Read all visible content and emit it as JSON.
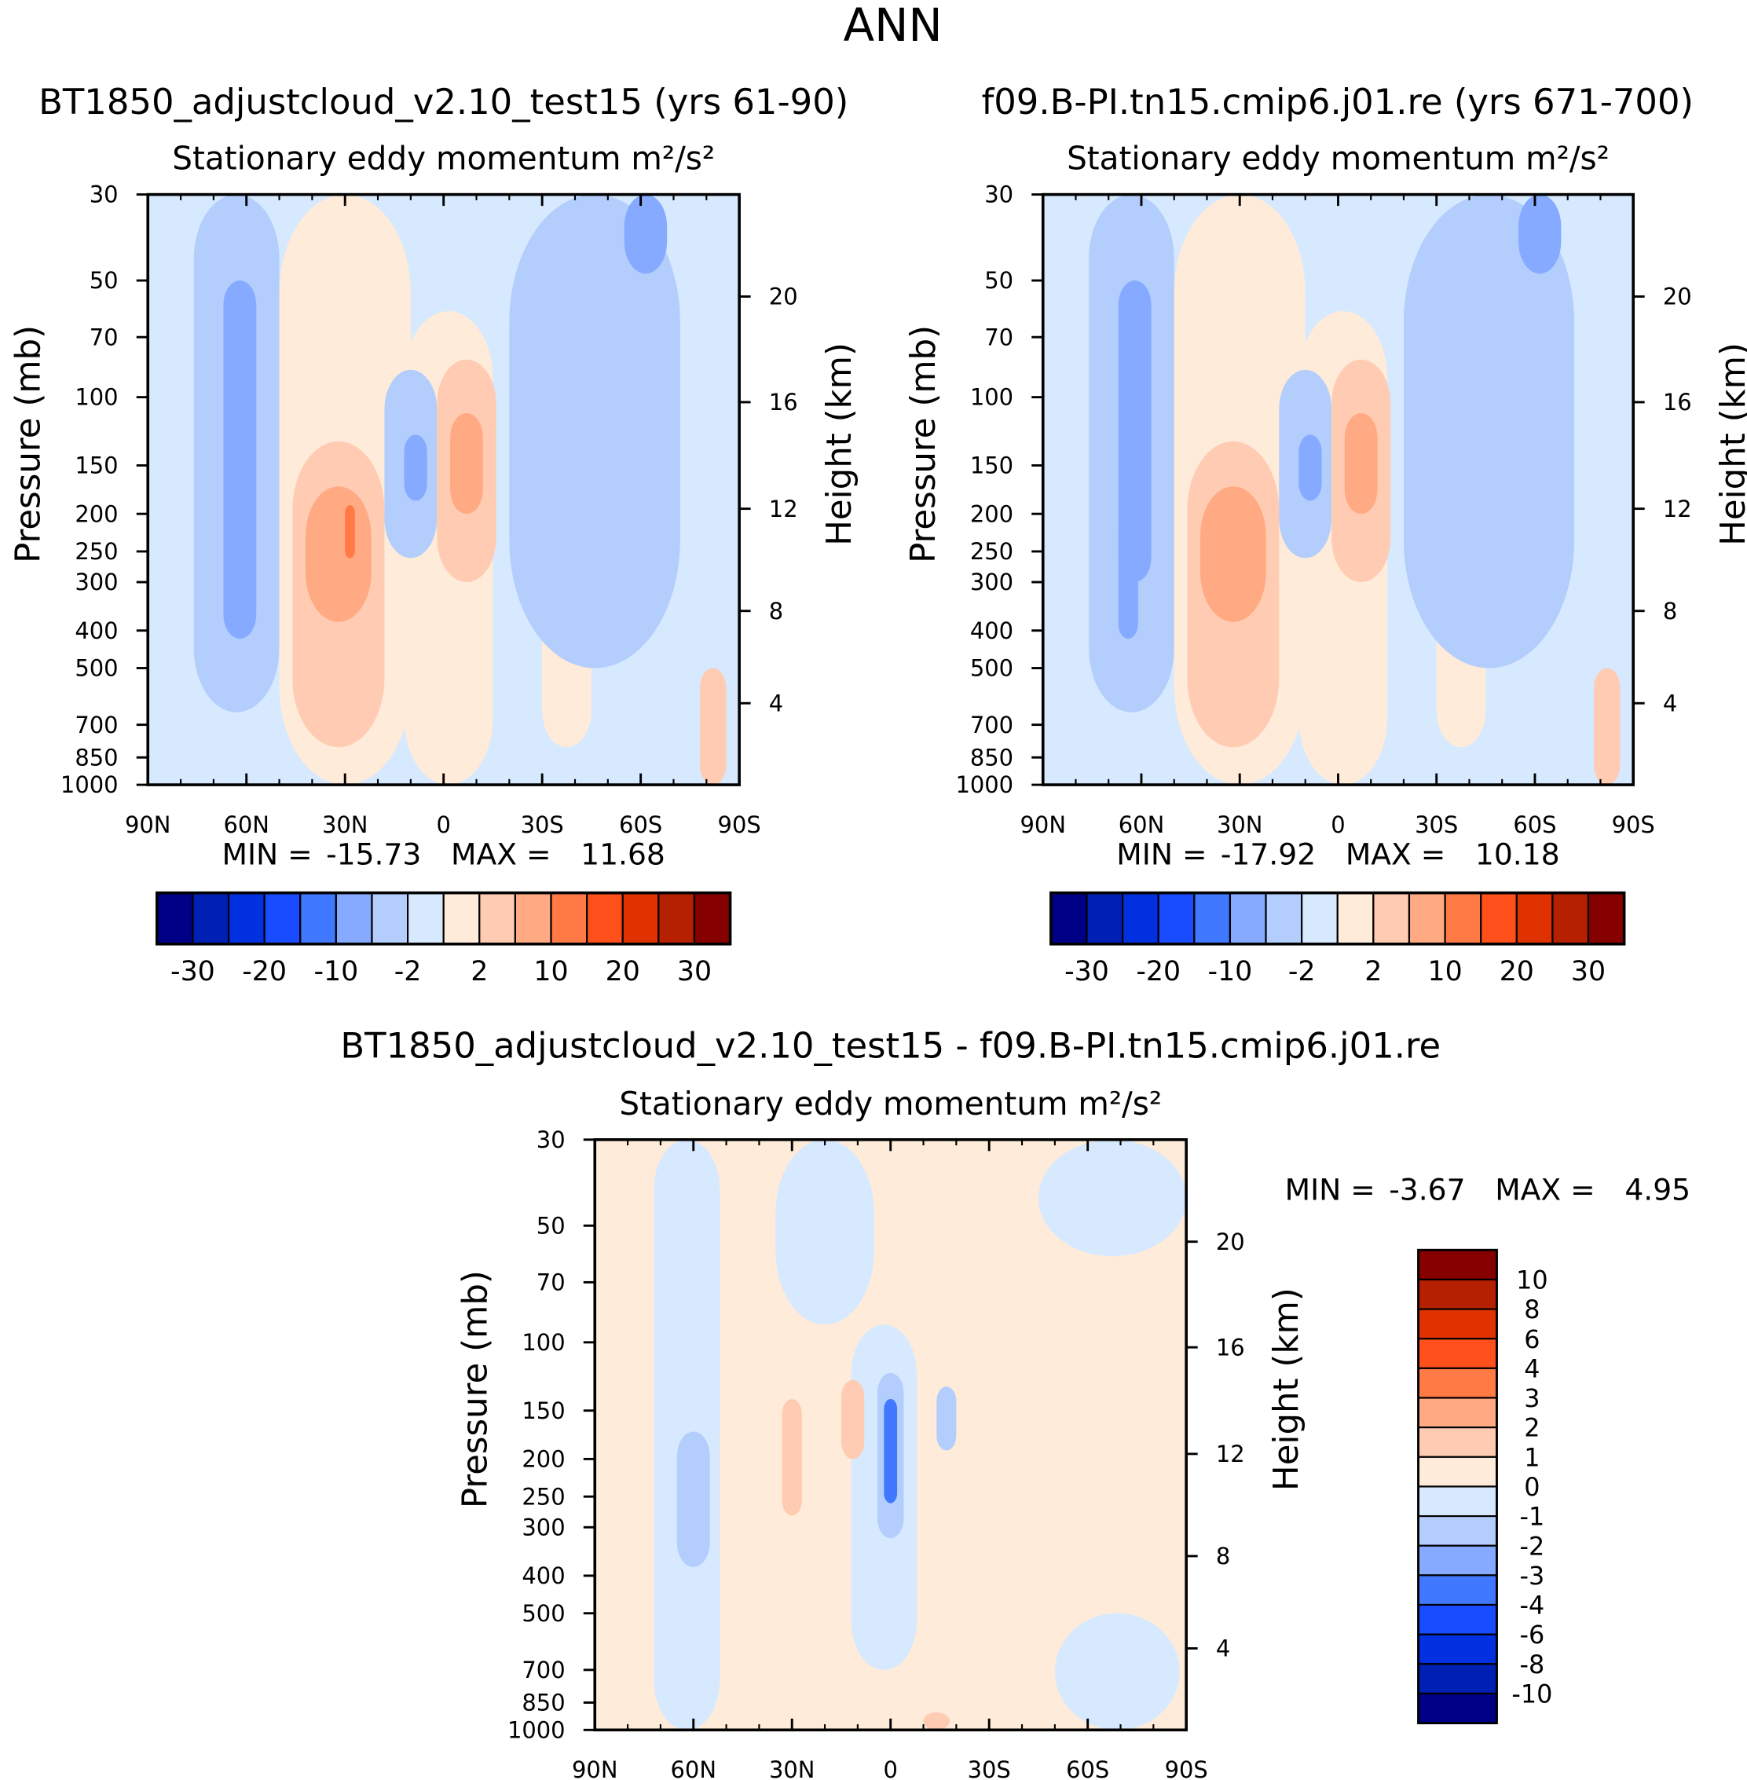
{
  "title": "ANN",
  "units_label": "m²/s²",
  "variable_label": "Stationary eddy momentum",
  "ylabel_left": "Pressure (mb)",
  "ylabel_right": "Height (km)",
  "chart_data": [
    {
      "type": "heatmap",
      "subtitle": "BT1850_adjustcloud_v2.10_test15 (yrs 61-90)",
      "title": "Stationary eddy momentum  m²/s²",
      "xlabel": "",
      "ylabel": "Pressure (mb)",
      "ylabel_right": "Height (km)",
      "x_ticks": [
        "90N",
        "60N",
        "30N",
        "0",
        "30S",
        "60S",
        "90S"
      ],
      "y_ticks": [
        30,
        50,
        70,
        100,
        150,
        200,
        250,
        300,
        400,
        500,
        700,
        850,
        1000
      ],
      "y_right_ticks": [
        20,
        16,
        12,
        8,
        4
      ],
      "xlim": [
        90,
        -90
      ],
      "ylim": [
        1000,
        30
      ],
      "min_label": "MIN =",
      "min": "-15.73",
      "max_label": "MAX =",
      "max": "11.68",
      "features": [
        {
          "lat": [
            90,
            -90
          ],
          "p": [
            30,
            1000
          ],
          "v": -1
        },
        {
          "lat": [
            50,
            10
          ],
          "p": [
            30,
            1000
          ],
          "v": 1
        },
        {
          "lat": [
            12,
            -15
          ],
          "p": [
            60,
            1000
          ],
          "v": 1
        },
        {
          "lat": [
            -30,
            -45
          ],
          "p": [
            150,
            800
          ],
          "v": 1
        },
        {
          "lat": [
            76,
            50
          ],
          "p": [
            30,
            650
          ],
          "v": -3
        },
        {
          "lat": [
            67,
            57
          ],
          "p": [
            50,
            420
          ],
          "v": -7
        },
        {
          "lat": [
            46,
            18
          ],
          "p": [
            130,
            800
          ],
          "v": 3
        },
        {
          "lat": [
            42,
            22
          ],
          "p": [
            170,
            380
          ],
          "v": 7
        },
        {
          "lat": [
            30,
            27
          ],
          "p": [
            190,
            260
          ],
          "v": 12
        },
        {
          "lat": [
            18,
            2
          ],
          "p": [
            85,
            260
          ],
          "v": -3
        },
        {
          "lat": [
            12,
            5
          ],
          "p": [
            125,
            185
          ],
          "v": -7
        },
        {
          "lat": [
            2,
            -16
          ],
          "p": [
            80,
            300
          ],
          "v": 3
        },
        {
          "lat": [
            -2,
            -12
          ],
          "p": [
            110,
            200
          ],
          "v": 7
        },
        {
          "lat": [
            -20,
            -72
          ],
          "p": [
            30,
            500
          ],
          "v": -3
        },
        {
          "lat": [
            -55,
            -68
          ],
          "p": [
            30,
            48
          ],
          "v": -7
        },
        {
          "lat": [
            -78,
            -86
          ],
          "p": [
            500,
            1000
          ],
          "v": 3
        }
      ]
    },
    {
      "type": "heatmap",
      "subtitle": "f09.B-PI.tn15.cmip6.j01.re (yrs 671-700)",
      "title": "Stationary eddy momentum  m²/s²",
      "xlabel": "",
      "ylabel": "Pressure (mb)",
      "ylabel_right": "Height (km)",
      "x_ticks": [
        "90N",
        "60N",
        "30N",
        "0",
        "30S",
        "60S",
        "90S"
      ],
      "y_ticks": [
        30,
        50,
        70,
        100,
        150,
        200,
        250,
        300,
        400,
        500,
        700,
        850,
        1000
      ],
      "y_right_ticks": [
        20,
        16,
        12,
        8,
        4
      ],
      "xlim": [
        90,
        -90
      ],
      "ylim": [
        1000,
        30
      ],
      "min_label": "MIN =",
      "min": "-17.92",
      "max_label": "MAX =",
      "max": "10.18",
      "features": [
        {
          "lat": [
            90,
            -90
          ],
          "p": [
            30,
            1000
          ],
          "v": -1
        },
        {
          "lat": [
            50,
            10
          ],
          "p": [
            30,
            1000
          ],
          "v": 1
        },
        {
          "lat": [
            12,
            -15
          ],
          "p": [
            60,
            1000
          ],
          "v": 1
        },
        {
          "lat": [
            -30,
            -45
          ],
          "p": [
            150,
            800
          ],
          "v": 1
        },
        {
          "lat": [
            76,
            50
          ],
          "p": [
            30,
            650
          ],
          "v": -3
        },
        {
          "lat": [
            67,
            57
          ],
          "p": [
            50,
            300
          ],
          "v": -7
        },
        {
          "lat": [
            67,
            61
          ],
          "p": [
            200,
            420
          ],
          "v": -7
        },
        {
          "lat": [
            46,
            18
          ],
          "p": [
            130,
            800
          ],
          "v": 3
        },
        {
          "lat": [
            42,
            22
          ],
          "p": [
            170,
            380
          ],
          "v": 7
        },
        {
          "lat": [
            18,
            2
          ],
          "p": [
            85,
            260
          ],
          "v": -3
        },
        {
          "lat": [
            12,
            5
          ],
          "p": [
            125,
            185
          ],
          "v": -7
        },
        {
          "lat": [
            2,
            -16
          ],
          "p": [
            80,
            300
          ],
          "v": 3
        },
        {
          "lat": [
            -2,
            -12
          ],
          "p": [
            110,
            200
          ],
          "v": 7
        },
        {
          "lat": [
            -20,
            -72
          ],
          "p": [
            30,
            500
          ],
          "v": -3
        },
        {
          "lat": [
            -55,
            -68
          ],
          "p": [
            30,
            48
          ],
          "v": -7
        },
        {
          "lat": [
            -78,
            -86
          ],
          "p": [
            500,
            1000
          ],
          "v": 3
        }
      ]
    },
    {
      "type": "heatmap",
      "subtitle": "BT1850_adjustcloud_v2.10_test15 - f09.B-PI.tn15.cmip6.j01.re",
      "title": "Stationary eddy momentum  m²/s²",
      "xlabel": "",
      "ylabel": "Pressure (mb)",
      "ylabel_right": "Height (km)",
      "x_ticks": [
        "90N",
        "60N",
        "30N",
        "0",
        "30S",
        "60S",
        "90S"
      ],
      "y_ticks": [
        30,
        50,
        70,
        100,
        150,
        200,
        250,
        300,
        400,
        500,
        700,
        850,
        1000
      ],
      "y_right_ticks": [
        20,
        16,
        12,
        8,
        4
      ],
      "xlim": [
        90,
        -90
      ],
      "ylim": [
        1000,
        30
      ],
      "min_label": "MIN =",
      "min": "-3.67",
      "max_label": "MAX =",
      "max": "4.95",
      "features": [
        {
          "lat": [
            90,
            -90
          ],
          "p": [
            30,
            1000
          ],
          "v": 0.5
        },
        {
          "lat": [
            72,
            52
          ],
          "p": [
            30,
            1000
          ],
          "v": -0.5
        },
        {
          "lat": [
            35,
            5
          ],
          "p": [
            30,
            90
          ],
          "v": -0.5
        },
        {
          "lat": [
            12,
            -8
          ],
          "p": [
            90,
            700
          ],
          "v": -0.5
        },
        {
          "lat": [
            -45,
            -90
          ],
          "p": [
            30,
            60
          ],
          "v": -0.5
        },
        {
          "lat": [
            -50,
            -88
          ],
          "p": [
            500,
            1000
          ],
          "v": -0.5
        },
        {
          "lat": [
            65,
            55
          ],
          "p": [
            170,
            380
          ],
          "v": -1.5
        },
        {
          "lat": [
            33,
            27
          ],
          "p": [
            140,
            280
          ],
          "v": 1.5
        },
        {
          "lat": [
            15,
            8
          ],
          "p": [
            125,
            200
          ],
          "v": 1.5
        },
        {
          "lat": [
            4,
            -4
          ],
          "p": [
            120,
            320
          ],
          "v": -1.5
        },
        {
          "lat": [
            2,
            -2
          ],
          "p": [
            140,
            260
          ],
          "v": -3.5
        },
        {
          "lat": [
            -14,
            -20
          ],
          "p": [
            130,
            190
          ],
          "v": -1.5
        },
        {
          "lat": [
            -10,
            -18
          ],
          "p": [
            900,
            1000
          ],
          "v": 1.5
        }
      ]
    }
  ],
  "colorbar_main": {
    "labels": [
      "-30",
      "-20",
      "-10",
      "-2",
      "2",
      "10",
      "20",
      "30"
    ],
    "colors": [
      "#000087",
      "#0020b4",
      "#0030e0",
      "#1a4cff",
      "#4078ff",
      "#85aaff",
      "#b3cdfd",
      "#d6e9fe",
      "#ffebd9",
      "#ffcbb3",
      "#ffaa82",
      "#ff7a45",
      "#ff4f1a",
      "#e03200",
      "#b42000",
      "#870000"
    ]
  },
  "colorbar_diff": {
    "labels": [
      "10",
      "8",
      "6",
      "4",
      "3",
      "2",
      "1",
      "0",
      "-1",
      "-2",
      "-3",
      "-4",
      "-6",
      "-8",
      "-10"
    ],
    "colors": [
      "#870000",
      "#b42000",
      "#e03200",
      "#ff4f1a",
      "#ff7a45",
      "#ffaa82",
      "#ffcbb3",
      "#ffebd9",
      "#d6e9fe",
      "#b3cdfd",
      "#85aaff",
      "#4078ff",
      "#1a4cff",
      "#0030e0",
      "#0020b4",
      "#000087"
    ]
  }
}
